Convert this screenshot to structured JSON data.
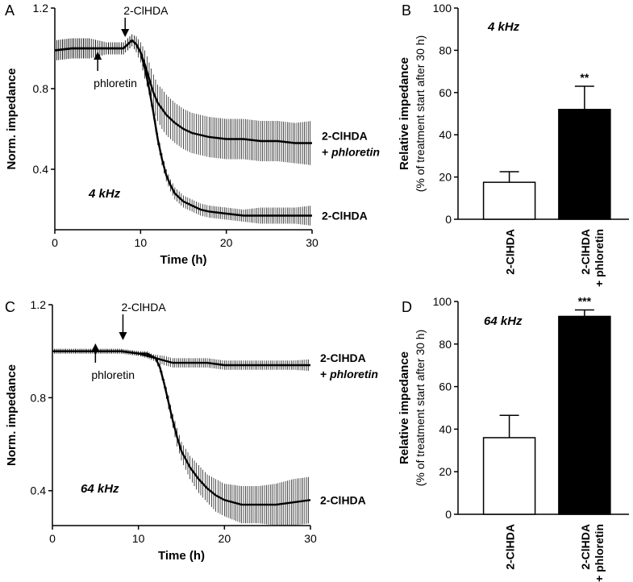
{
  "chart_data": [
    {
      "panel": "A",
      "type": "line",
      "xlabel": "Time (h)",
      "ylabel": "Norm. impedance",
      "xlim": [
        0,
        30
      ],
      "ylim": [
        0.1,
        1.2
      ],
      "x_ticks": [
        "0",
        "10",
        "20",
        "30"
      ],
      "y_ticks": [
        "0.4",
        "0.8",
        "1.2"
      ],
      "frequency_label": "4 kHz",
      "annotations": [
        {
          "text": "2-ClHDA",
          "x": 8.2
        },
        {
          "text": "phloretin",
          "x": 5.0
        }
      ],
      "series": [
        {
          "name_line1": "2-ClHDA",
          "name_line2_prefix": "+ ",
          "name_line2_italic": "phloretin",
          "x": [
            0,
            2,
            4,
            5,
            6,
            7,
            8,
            8.5,
            9,
            9.5,
            10,
            10.5,
            11,
            11.5,
            12,
            12.5,
            13,
            14,
            15,
            16,
            17,
            18,
            20,
            22,
            24,
            26,
            28,
            30
          ],
          "y": [
            0.99,
            1.0,
            1.0,
            1.0,
            1.0,
            1.0,
            1.0,
            1.02,
            1.04,
            1.02,
            0.98,
            0.92,
            0.85,
            0.78,
            0.73,
            0.7,
            0.67,
            0.63,
            0.6,
            0.58,
            0.57,
            0.56,
            0.55,
            0.55,
            0.54,
            0.54,
            0.53,
            0.53
          ],
          "err": [
            0.05,
            0.05,
            0.05,
            0.04,
            0.03,
            0.03,
            0.03,
            0.03,
            0.03,
            0.04,
            0.05,
            0.07,
            0.08,
            0.09,
            0.09,
            0.1,
            0.1,
            0.1,
            0.1,
            0.1,
            0.1,
            0.1,
            0.1,
            0.1,
            0.1,
            0.1,
            0.1,
            0.11
          ]
        },
        {
          "name": "2-ClHDA",
          "x": [
            0,
            2,
            4,
            5,
            6,
            7,
            8,
            8.5,
            9,
            9.5,
            10,
            10.5,
            11,
            11.5,
            12,
            12.5,
            13,
            13.5,
            14,
            15,
            16,
            17,
            18,
            20,
            22,
            24,
            26,
            28,
            30
          ],
          "y": [
            0.99,
            1.0,
            1.0,
            1.0,
            1.0,
            1.0,
            1.0,
            1.02,
            1.04,
            1.02,
            0.98,
            0.9,
            0.8,
            0.68,
            0.55,
            0.45,
            0.37,
            0.32,
            0.28,
            0.24,
            0.22,
            0.2,
            0.19,
            0.18,
            0.17,
            0.17,
            0.17,
            0.17,
            0.17
          ],
          "err": [
            0.05,
            0.05,
            0.05,
            0.04,
            0.03,
            0.03,
            0.03,
            0.03,
            0.03,
            0.03,
            0.03,
            0.03,
            0.03,
            0.03,
            0.03,
            0.03,
            0.03,
            0.03,
            0.03,
            0.03,
            0.03,
            0.03,
            0.03,
            0.03,
            0.03,
            0.04,
            0.04,
            0.04,
            0.05
          ]
        }
      ]
    },
    {
      "panel": "B",
      "type": "bar",
      "ylabel_line1": "Relative impedance",
      "ylabel_line2": "(% of treatment start after 30 h)",
      "ylim": [
        0,
        100
      ],
      "y_ticks": [
        "0",
        "20",
        "40",
        "60",
        "80",
        "100"
      ],
      "frequency_label": "4 kHz",
      "bars": [
        {
          "label_line1": "2-ClHDA",
          "label_line2": "",
          "value": 17.5,
          "err": 5,
          "fill": "#ffffff",
          "sig": ""
        },
        {
          "label_line1": "2-ClHDA",
          "label_line2": "+ phloretin",
          "value": 52,
          "err": 11,
          "fill": "#000000",
          "sig": "**"
        }
      ]
    },
    {
      "panel": "C",
      "type": "line",
      "xlabel": "Time (h)",
      "ylabel": "Norm. impedance",
      "xlim": [
        0,
        30
      ],
      "ylim": [
        0.25,
        1.2
      ],
      "x_ticks": [
        "0",
        "10",
        "20",
        "30"
      ],
      "y_ticks": [
        "0.4",
        "0.8",
        "1.2"
      ],
      "frequency_label": "64 kHz",
      "annotations": [
        {
          "text": "2-ClHDA",
          "x": 8.2
        },
        {
          "text": "phloretin",
          "x": 5.0
        }
      ],
      "series": [
        {
          "name_line1": "2-ClHDA",
          "name_line2_prefix": "+ ",
          "name_line2_italic": "phloretin",
          "x": [
            0,
            2,
            4,
            6,
            8,
            10,
            11,
            12,
            13,
            14,
            16,
            18,
            20,
            22,
            24,
            26,
            28,
            30
          ],
          "y": [
            1.0,
            1.0,
            1.0,
            1.0,
            1.0,
            0.99,
            0.98,
            0.97,
            0.96,
            0.95,
            0.95,
            0.95,
            0.94,
            0.94,
            0.94,
            0.94,
            0.94,
            0.94
          ],
          "err": [
            0.01,
            0.01,
            0.01,
            0.01,
            0.01,
            0.01,
            0.01,
            0.015,
            0.02,
            0.02,
            0.02,
            0.02,
            0.02,
            0.02,
            0.02,
            0.02,
            0.02,
            0.025
          ]
        },
        {
          "name": "2-ClHDA",
          "x": [
            0,
            2,
            4,
            6,
            8,
            10,
            11,
            12,
            12.5,
            13,
            13.5,
            14,
            14.5,
            15,
            16,
            17,
            18,
            19,
            20,
            22,
            24,
            26,
            28,
            30
          ],
          "y": [
            1.0,
            1.0,
            1.0,
            1.0,
            1.0,
            0.99,
            0.99,
            0.97,
            0.93,
            0.86,
            0.78,
            0.7,
            0.63,
            0.57,
            0.5,
            0.45,
            0.41,
            0.38,
            0.36,
            0.34,
            0.34,
            0.34,
            0.35,
            0.36
          ],
          "err": [
            0.01,
            0.01,
            0.01,
            0.01,
            0.01,
            0.01,
            0.01,
            0.01,
            0.02,
            0.02,
            0.03,
            0.03,
            0.04,
            0.04,
            0.05,
            0.06,
            0.06,
            0.07,
            0.07,
            0.08,
            0.08,
            0.09,
            0.1,
            0.1
          ]
        }
      ]
    },
    {
      "panel": "D",
      "type": "bar",
      "ylabel_line1": "Relative impedance",
      "ylabel_line2": "(% of treatment start after 30 h)",
      "ylim": [
        0,
        100
      ],
      "y_ticks": [
        "0",
        "20",
        "40",
        "60",
        "80",
        "100"
      ],
      "frequency_label": "64 kHz",
      "bars": [
        {
          "label_line1": "2-ClHDA",
          "label_line2": "",
          "value": 36,
          "err": 10.5,
          "fill": "#ffffff",
          "sig": ""
        },
        {
          "label_line1": "2-ClHDA",
          "label_line2": "+ phloretin",
          "value": 93,
          "err": 3,
          "fill": "#000000",
          "sig": "***"
        }
      ]
    }
  ]
}
